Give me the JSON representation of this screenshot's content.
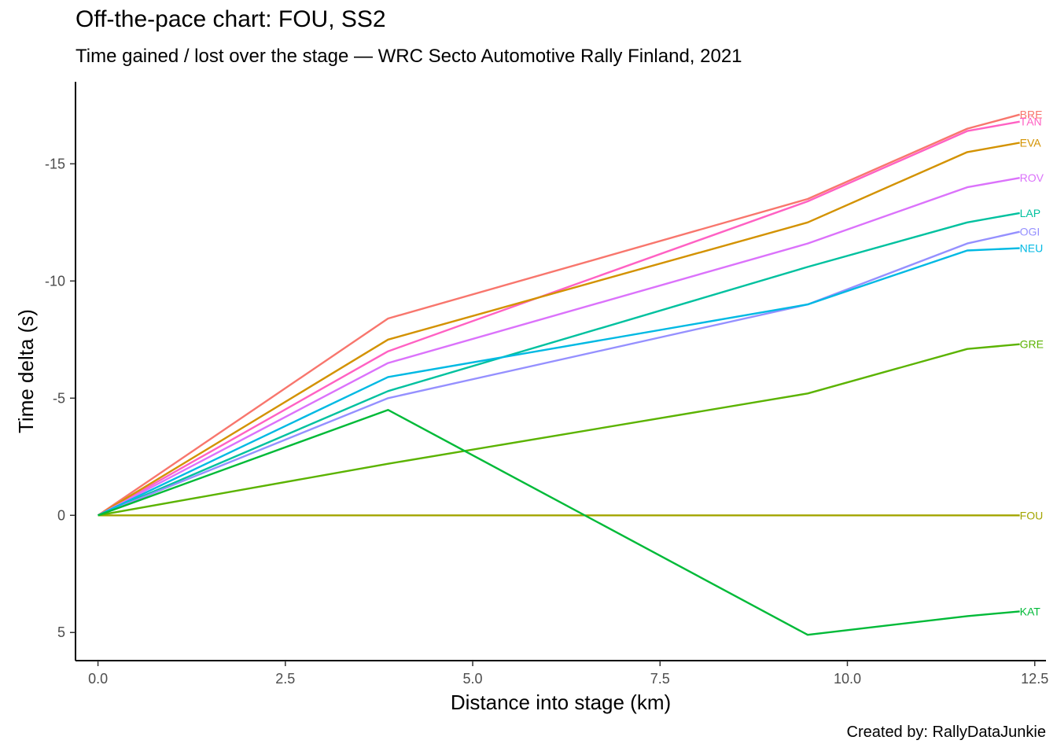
{
  "chart_data": {
    "type": "line",
    "title": "Off-the-pace chart: FOU, SS2",
    "subtitle": "Time gained / lost over the stage — WRC Secto Automotive Rally Finland, 2021",
    "caption": "Created by: RallyDataJunkie",
    "xlabel": "Distance into stage (km)",
    "ylabel": "Time delta (s)",
    "xlim": [
      -0.3,
      12.65
    ],
    "ylim": [
      -18.5,
      6.2
    ],
    "y_reversed": true,
    "xticks": [
      0,
      2.5,
      5,
      7.5,
      10,
      12.5
    ],
    "xtick_labels": [
      "0.0",
      "2.5",
      "5.0",
      "7.5",
      "10.0",
      "12.5"
    ],
    "yticks": [
      -15,
      -10,
      -5,
      0,
      5
    ],
    "ytick_labels": [
      "-15",
      "-10",
      "-5",
      "0",
      "5"
    ],
    "grid": false,
    "legend": "direct labels at line ends",
    "x": [
      0,
      3.87,
      9.47,
      11.6,
      12.3
    ],
    "series": [
      {
        "name": "BRE",
        "color": "#F8766D",
        "values": [
          0,
          -8.4,
          -13.5,
          -16.5,
          -17.1
        ]
      },
      {
        "name": "TÄN",
        "color": "#FF61C3",
        "values": [
          0,
          -7.0,
          -13.4,
          -16.4,
          -16.8
        ]
      },
      {
        "name": "EVA",
        "color": "#D39200",
        "values": [
          0,
          -7.5,
          -12.5,
          -15.5,
          -15.9
        ]
      },
      {
        "name": "ROV",
        "color": "#DB72FB",
        "values": [
          0,
          -6.5,
          -11.6,
          -14.0,
          -14.4
        ]
      },
      {
        "name": "LAP",
        "color": "#00C19F",
        "values": [
          0,
          -5.3,
          -10.6,
          -12.5,
          -12.9
        ]
      },
      {
        "name": "OGI",
        "color": "#9590FF",
        "values": [
          0,
          -5.0,
          -9.0,
          -11.6,
          -12.1
        ]
      },
      {
        "name": "NEU",
        "color": "#00B9E3",
        "values": [
          0,
          -5.9,
          -9.0,
          -11.3,
          -11.4
        ]
      },
      {
        "name": "GRE",
        "color": "#5BB300",
        "values": [
          0,
          -2.2,
          -5.2,
          -7.1,
          -7.3
        ]
      },
      {
        "name": "FOU",
        "color": "#A3A500",
        "values": [
          0,
          0,
          0,
          0,
          0
        ]
      },
      {
        "name": "KAT",
        "color": "#00BA38",
        "values": [
          0,
          -4.5,
          5.1,
          4.3,
          4.1
        ]
      }
    ]
  }
}
